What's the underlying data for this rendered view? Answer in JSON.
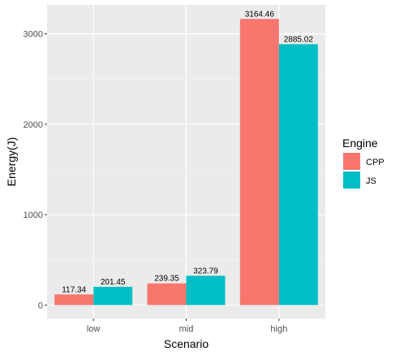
{
  "chart_data": {
    "type": "bar",
    "title": "",
    "xlabel": "Scenario",
    "ylabel": "Energy(J)",
    "categories": [
      "low",
      "mid",
      "high"
    ],
    "series": [
      {
        "name": "CPP",
        "values": [
          117.34,
          239.35,
          3164.46
        ],
        "labels": [
          "117.34",
          "239.35",
          "3164.46"
        ]
      },
      {
        "name": "JS",
        "values": [
          201.45,
          323.79,
          2885.02
        ],
        "labels": [
          "201.45",
          "323.79",
          "2885.02"
        ]
      }
    ],
    "ylim": [
      -150,
      3320
    ],
    "yticks": [
      0,
      1000,
      2000,
      3000
    ],
    "ytick_labels": [
      "0",
      "1000",
      "2000",
      "3000"
    ],
    "grid": true,
    "legend": {
      "title": "Engine",
      "placement": "right"
    },
    "colors": {
      "CPP": "#F8766D",
      "JS": "#00BFC4",
      "panel": "#EBEBEB",
      "grid_major": "#FFFFFF",
      "grid_minor": "#F5F5F5"
    }
  }
}
